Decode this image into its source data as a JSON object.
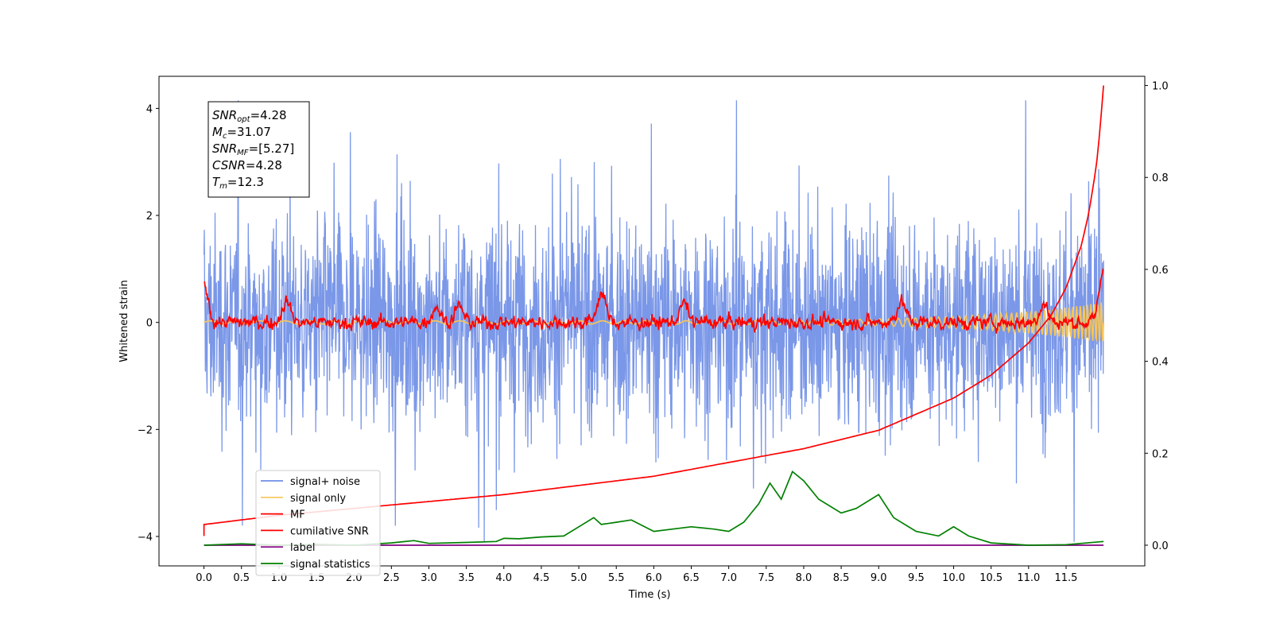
{
  "chart_data": {
    "type": "line",
    "xlabel": "Time (s)",
    "ylabel": "Whitened strain",
    "xlim": [
      -0.6,
      12.55
    ],
    "ylim": [
      -4.55,
      4.6
    ],
    "y2lim": [
      -0.045,
      1.02
    ],
    "xticks": [
      0.0,
      0.5,
      1.0,
      1.5,
      2.0,
      2.5,
      3.0,
      3.5,
      4.0,
      4.5,
      5.0,
      5.5,
      6.0,
      6.5,
      7.0,
      7.5,
      8.0,
      8.5,
      9.0,
      9.5,
      10.0,
      10.5,
      11.0,
      11.5
    ],
    "xtick_labels": [
      "0.0",
      "0.5",
      "1.0",
      "1.5",
      "2.0",
      "2.5",
      "3.0",
      "3.5",
      "4.0",
      "4.5",
      "5.0",
      "5.5",
      "6.0",
      "6.5",
      "7.0",
      "7.5",
      "8.0",
      "8.5",
      "9.0",
      "9.5",
      "10.0",
      "10.5",
      "11.0",
      "11.5"
    ],
    "yticks": [
      -4,
      -2,
      0,
      2,
      4
    ],
    "ytick_labels": [
      "−4",
      "−2",
      "0",
      "2",
      "4"
    ],
    "y2ticks": [
      0.0,
      0.2,
      0.4,
      0.6,
      0.8,
      1.0
    ],
    "y2tick_labels": [
      "0.0",
      "0.2",
      "0.4",
      "0.6",
      "0.8",
      "1.0"
    ],
    "grid": false,
    "legend_position": "lower-left",
    "annotation": {
      "lines": [
        {
          "sym": "SNR",
          "sub": "opt",
          "val": "=4.28"
        },
        {
          "sym": "M",
          "sub": "c",
          "val": "=31.07"
        },
        {
          "sym": "SNR",
          "sub": "MF",
          "val": "=[5.27]"
        },
        {
          "sym": "CSNR",
          "sub": "",
          "val": "=4.28"
        },
        {
          "sym": "T",
          "sub": "m",
          "val": "=12.3"
        }
      ]
    },
    "series": [
      {
        "name": "signal+ noise",
        "color": "#6f8ee6",
        "axis": "left",
        "kind": "noise",
        "x_range": [
          0,
          12.0
        ],
        "std": 0.95,
        "range": [
          -4.1,
          4.15
        ]
      },
      {
        "name": "signal only",
        "color": "#f6c55a",
        "axis": "left",
        "kind": "chirp",
        "x_range": [
          0,
          12.0
        ],
        "amplitude_end": 0.35
      },
      {
        "name": "MF",
        "color": "#ff0000",
        "axis": "left",
        "kind": "matched-filter",
        "x_range": [
          0,
          12.0
        ],
        "bumps": [
          [
            0.0,
            0.7
          ],
          [
            1.1,
            0.4
          ],
          [
            3.1,
            0.3
          ],
          [
            3.4,
            0.3
          ],
          [
            5.3,
            0.55
          ],
          [
            6.4,
            0.35
          ],
          [
            9.3,
            0.4
          ],
          [
            11.2,
            0.35
          ],
          [
            12.0,
            1.0
          ]
        ]
      },
      {
        "name": "cumilative SNR",
        "color": "#ff0000",
        "axis": "right",
        "x": [
          0.0,
          0.5,
          1.0,
          2.0,
          3.0,
          4.0,
          5.0,
          6.0,
          7.0,
          8.0,
          9.0,
          10.0,
          10.5,
          11.0,
          11.3,
          11.5,
          11.7,
          11.8,
          11.9,
          11.95,
          12.0
        ],
        "values": [
          0.045,
          0.055,
          0.065,
          0.08,
          0.095,
          0.11,
          0.13,
          0.15,
          0.18,
          0.21,
          0.25,
          0.32,
          0.37,
          0.44,
          0.5,
          0.56,
          0.65,
          0.72,
          0.82,
          0.9,
          1.0
        ]
      },
      {
        "name": "label",
        "color": "#800080",
        "axis": "right",
        "x": [
          0.0,
          12.0
        ],
        "values": [
          0.0,
          0.0
        ]
      },
      {
        "name": "signal statistics",
        "color": "#008000",
        "axis": "right",
        "x": [
          0.0,
          0.5,
          1.0,
          1.5,
          2.0,
          2.5,
          2.8,
          3.0,
          3.5,
          3.9,
          4.0,
          4.2,
          4.5,
          4.8,
          5.0,
          5.2,
          5.3,
          5.5,
          5.7,
          6.0,
          6.5,
          6.8,
          7.0,
          7.2,
          7.4,
          7.55,
          7.7,
          7.85,
          8.0,
          8.2,
          8.5,
          8.7,
          9.0,
          9.2,
          9.5,
          9.8,
          10.0,
          10.2,
          10.5,
          11.0,
          11.5,
          12.0
        ],
        "values": [
          0.0,
          0.003,
          0.0,
          0.002,
          0.0,
          0.005,
          0.01,
          0.004,
          0.006,
          0.008,
          0.015,
          0.014,
          0.018,
          0.02,
          0.04,
          0.06,
          0.045,
          0.05,
          0.055,
          0.03,
          0.04,
          0.035,
          0.03,
          0.05,
          0.09,
          0.135,
          0.1,
          0.16,
          0.14,
          0.1,
          0.07,
          0.08,
          0.11,
          0.06,
          0.03,
          0.02,
          0.04,
          0.02,
          0.005,
          0.0,
          0.001,
          0.008
        ]
      }
    ]
  }
}
